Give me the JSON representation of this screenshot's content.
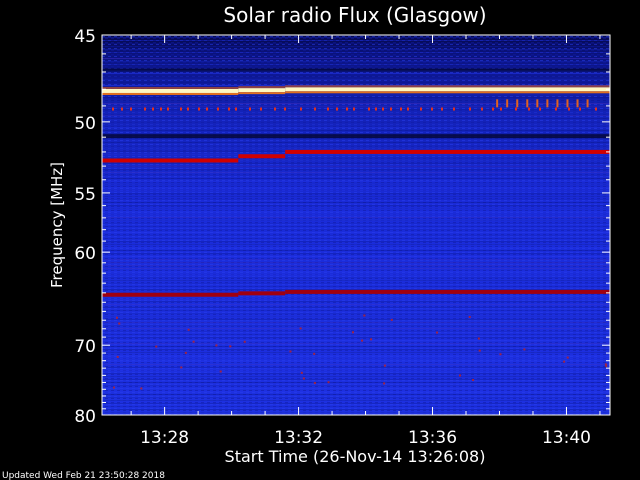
{
  "chart_data": {
    "type": "heatmap",
    "title": "Solar radio Flux (Glasgow)",
    "xlabel": "Start Time (26-Nov-14 13:26:08)",
    "ylabel": "Frequency [MHz]",
    "footer": "Updated Wed Feb 21 23:50:28 2018",
    "x_ticks": [
      {
        "label": "13:28",
        "minutes": 28
      },
      {
        "label": "13:32",
        "minutes": 32
      },
      {
        "label": "13:36",
        "minutes": 36
      },
      {
        "label": "13:40",
        "minutes": 40
      }
    ],
    "x_range_minutes": [
      26.13,
      41.3
    ],
    "y_ticks": [
      45,
      50,
      55,
      60,
      70,
      80
    ],
    "y_range": [
      45,
      80
    ],
    "y_scale": "reciprocal",
    "emission_bands": [
      {
        "freq_start": 48.1,
        "freq_end": 48.0,
        "color": "#fff8c0"
      },
      {
        "freq_start": 52.6,
        "freq_end": 52.0,
        "color": "#d00000"
      },
      {
        "freq_start": 64.2,
        "freq_end": 63.9,
        "color": "#a00010"
      }
    ],
    "colors": {
      "background": "#000000",
      "plot_base": "#1a2bd8",
      "plot_dark": "#0a0f6a",
      "hot": "#d00000",
      "hottest": "#fff8c0"
    }
  }
}
